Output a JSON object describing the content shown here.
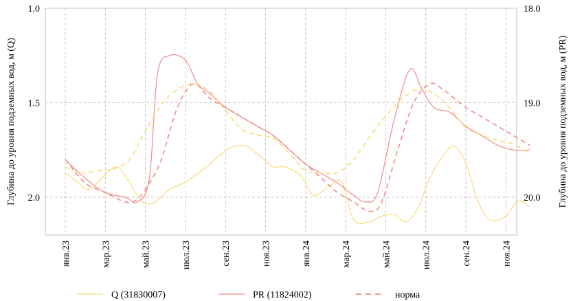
{
  "chart_data": {
    "type": "line",
    "categories": [
      "янв.23",
      "мар.23",
      "май.23",
      "июл.23",
      "сен.23",
      "ноя.23",
      "янв.24",
      "мар.24",
      "май.24",
      "июл.24",
      "сен.24",
      "ноя.24"
    ],
    "y_left": {
      "label": "Глубина до уровня подземных вод, м (Q)",
      "ylim": [
        2.2,
        1.0
      ],
      "ticks": [
        "1.0",
        "1.5",
        "2.0"
      ],
      "tick_values": [
        1.0,
        1.5,
        2.0
      ],
      "inverted": true
    },
    "y_right": {
      "label": "Глубина до уровня подземных вод, м (PR)",
      "ylim": [
        20.4,
        18.0
      ],
      "ticks": [
        "18.0",
        "19.0",
        "20.0"
      ],
      "tick_values": [
        18.0,
        19.0,
        20.0
      ],
      "inverted": true
    },
    "grid": true,
    "legend_position": "bottom",
    "series": [
      {
        "name": "Q (31830007)",
        "axis": "left",
        "style": "solid",
        "color": "#fbd978",
        "x": [
          0,
          0.3,
          0.6,
          1,
          1.3,
          1.6,
          1.9,
          2.2,
          2.6,
          3,
          3.4,
          3.8,
          4.1,
          4.5,
          4.9,
          5.2,
          5.5,
          5.9,
          6.2,
          6.6,
          6.9,
          7.2,
          7.6,
          7.9,
          8.2,
          8.5,
          8.8,
          9.1,
          9.4,
          9.7,
          10,
          10.3,
          10.6,
          11,
          11.3,
          11.6
        ],
        "values": [
          1.87,
          1.92,
          1.96,
          1.88,
          1.84,
          1.92,
          2.02,
          2.03,
          1.96,
          1.92,
          1.86,
          1.79,
          1.74,
          1.73,
          1.79,
          1.84,
          1.84,
          1.89,
          1.99,
          1.94,
          1.92,
          2.12,
          2.13,
          2.1,
          2.09,
          2.13,
          2.06,
          1.9,
          1.79,
          1.73,
          1.82,
          2.02,
          2.12,
          2.1,
          2.02,
          2.05
        ]
      },
      {
        "name": "PR (11824002)",
        "axis": "right",
        "style": "solid",
        "color": "#f08a8a",
        "x": [
          0,
          0.5,
          1,
          1.5,
          1.8,
          2.1,
          2.3,
          2.6,
          3,
          3.3,
          3.6,
          4,
          4.4,
          4.8,
          5.2,
          5.6,
          6,
          6.4,
          6.8,
          7.2,
          7.5,
          7.8,
          8.2,
          8.6,
          8.9,
          9.2,
          9.6,
          10,
          10.4,
          10.8,
          11.2,
          11.6
        ],
        "values": [
          19.6,
          19.8,
          19.95,
          20.0,
          20.05,
          19.8,
          18.7,
          18.5,
          18.55,
          18.8,
          18.9,
          19.05,
          19.15,
          19.25,
          19.35,
          19.5,
          19.65,
          19.75,
          19.85,
          19.98,
          20.05,
          19.95,
          19.2,
          18.65,
          18.85,
          19.05,
          19.1,
          19.25,
          19.35,
          19.45,
          19.5,
          19.5
        ]
      },
      {
        "name": "норма",
        "axis": "right",
        "style": "dashed",
        "color": "#f08a8a",
        "x": [
          0,
          0.5,
          1,
          1.5,
          1.8,
          2.1,
          2.4,
          2.8,
          3.2,
          3.6,
          4,
          4.4,
          4.8,
          5.2,
          5.6,
          6,
          6.4,
          6.8,
          7.2,
          7.6,
          7.9,
          8.3,
          8.7,
          9.1,
          9.4,
          9.7,
          10,
          10.4,
          10.8,
          11.2,
          11.6
        ],
        "values": [
          19.6,
          19.85,
          19.95,
          20.05,
          20.02,
          19.85,
          19.6,
          19.05,
          18.8,
          18.95,
          19.05,
          19.15,
          19.25,
          19.35,
          19.5,
          19.65,
          19.8,
          19.95,
          20.05,
          20.15,
          20.05,
          19.5,
          19.0,
          18.8,
          18.85,
          18.95,
          19.05,
          19.15,
          19.25,
          19.35,
          19.45
        ]
      },
      {
        "name": "",
        "axis": "left",
        "style": "dashed",
        "color": "#fbd978",
        "x": [
          0,
          0.4,
          0.8,
          1.2,
          1.6,
          2,
          2.4,
          2.8,
          3.2,
          3.6,
          4,
          4.4,
          4.8,
          5.2,
          5.6,
          6,
          6.4,
          6.8,
          7.2,
          7.6,
          8,
          8.4,
          8.8,
          9.2,
          9.6,
          10,
          10.4,
          10.8,
          11.2,
          11.6
        ],
        "values": [
          1.84,
          1.87,
          1.86,
          1.85,
          1.8,
          1.65,
          1.51,
          1.43,
          1.4,
          1.44,
          1.54,
          1.64,
          1.67,
          1.69,
          1.77,
          1.86,
          1.87,
          1.87,
          1.8,
          1.68,
          1.57,
          1.48,
          1.43,
          1.45,
          1.53,
          1.63,
          1.67,
          1.7,
          1.72,
          1.77
        ]
      }
    ]
  }
}
